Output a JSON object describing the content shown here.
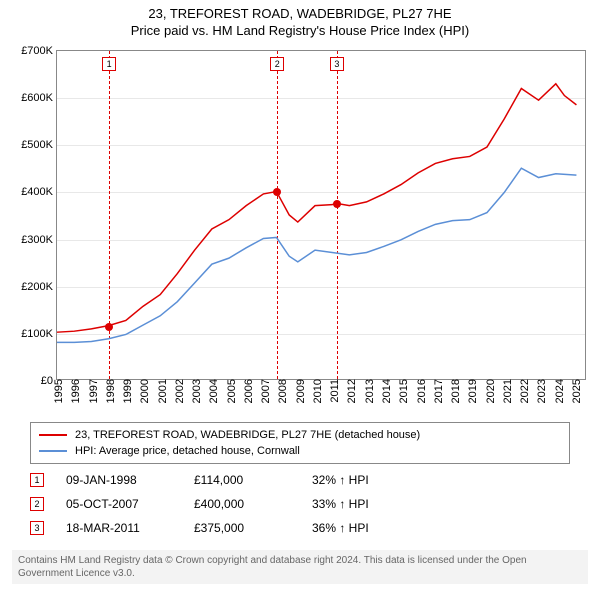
{
  "title": "23, TREFOREST ROAD, WADEBRIDGE, PL27 7HE",
  "subtitle": "Price paid vs. HM Land Registry's House Price Index (HPI)",
  "chart": {
    "type": "line",
    "xlim": [
      1995,
      2025.7
    ],
    "ylim": [
      0,
      700000
    ],
    "ytick_step": 100000,
    "ytick_prefix": "£",
    "ytick_suffix": "K",
    "ytick_divisor": 1000,
    "xticks": [
      1995,
      1996,
      1997,
      1998,
      1999,
      2000,
      2001,
      2002,
      2003,
      2004,
      2005,
      2006,
      2007,
      2008,
      2009,
      2010,
      2011,
      2012,
      2013,
      2014,
      2015,
      2016,
      2017,
      2018,
      2019,
      2020,
      2021,
      2022,
      2023,
      2024,
      2025
    ],
    "grid_color": "#e8e8e8",
    "border_color": "#888888",
    "background_color": "#ffffff",
    "series": [
      {
        "name": "23, TREFOREST ROAD, WADEBRIDGE, PL27 7HE (detached house)",
        "color": "#dd0000",
        "width": 1.5,
        "x": [
          1995,
          1996,
          1997,
          1998,
          1999,
          2000,
          2001,
          2002,
          2003,
          2004,
          2005,
          2006,
          2007,
          2007.76,
          2008.5,
          2009,
          2010,
          2011,
          2011.21,
          2012,
          2013,
          2014,
          2015,
          2016,
          2017,
          2018,
          2019,
          2020,
          2021,
          2022,
          2023,
          2024,
          2024.5,
          2025.2
        ],
        "y": [
          100000,
          102000,
          107000,
          114000,
          125000,
          155000,
          180000,
          225000,
          275000,
          320000,
          340000,
          370000,
          395000,
          400000,
          350000,
          335000,
          370000,
          372000,
          375000,
          370000,
          378000,
          395000,
          415000,
          440000,
          460000,
          470000,
          475000,
          495000,
          555000,
          620000,
          595000,
          630000,
          605000,
          585000
        ]
      },
      {
        "name": "HPI: Average price, detached house, Cornwall",
        "color": "#5b8fd6",
        "width": 1.5,
        "x": [
          1995,
          1996,
          1997,
          1998,
          1999,
          2000,
          2001,
          2002,
          2003,
          2004,
          2005,
          2006,
          2007,
          2007.76,
          2008.5,
          2009,
          2010,
          2011,
          2012,
          2013,
          2014,
          2015,
          2016,
          2017,
          2018,
          2019,
          2020,
          2021,
          2022,
          2023,
          2024,
          2025.2
        ],
        "y": [
          78000,
          78000,
          80000,
          86000,
          95000,
          115000,
          135000,
          165000,
          205000,
          245000,
          258000,
          280000,
          300000,
          302000,
          262000,
          250000,
          275000,
          270000,
          265000,
          270000,
          283000,
          297000,
          315000,
          330000,
          338000,
          340000,
          355000,
          398000,
          450000,
          430000,
          438000,
          435000
        ]
      }
    ],
    "markers": [
      {
        "x": 1998.02,
        "y": 114000,
        "color": "#dd0000"
      },
      {
        "x": 2007.76,
        "y": 400000,
        "color": "#dd0000"
      },
      {
        "x": 2011.21,
        "y": 375000,
        "color": "#dd0000"
      }
    ],
    "events": [
      {
        "idx": "1",
        "x": 1998.02
      },
      {
        "idx": "2",
        "x": 2007.76
      },
      {
        "idx": "3",
        "x": 2011.21
      }
    ]
  },
  "legend": [
    {
      "color": "#dd0000",
      "label": "23, TREFOREST ROAD, WADEBRIDGE, PL27 7HE (detached house)"
    },
    {
      "color": "#5b8fd6",
      "label": "HPI: Average price, detached house, Cornwall"
    }
  ],
  "sales": [
    {
      "idx": "1",
      "date": "09-JAN-1998",
      "price": "£114,000",
      "delta": "32% ↑ HPI"
    },
    {
      "idx": "2",
      "date": "05-OCT-2007",
      "price": "£400,000",
      "delta": "33% ↑ HPI"
    },
    {
      "idx": "3",
      "date": "18-MAR-2011",
      "price": "£375,000",
      "delta": "36% ↑ HPI"
    }
  ],
  "footer": "Contains HM Land Registry data © Crown copyright and database right 2024. This data is licensed under the Open Government Licence v3.0."
}
